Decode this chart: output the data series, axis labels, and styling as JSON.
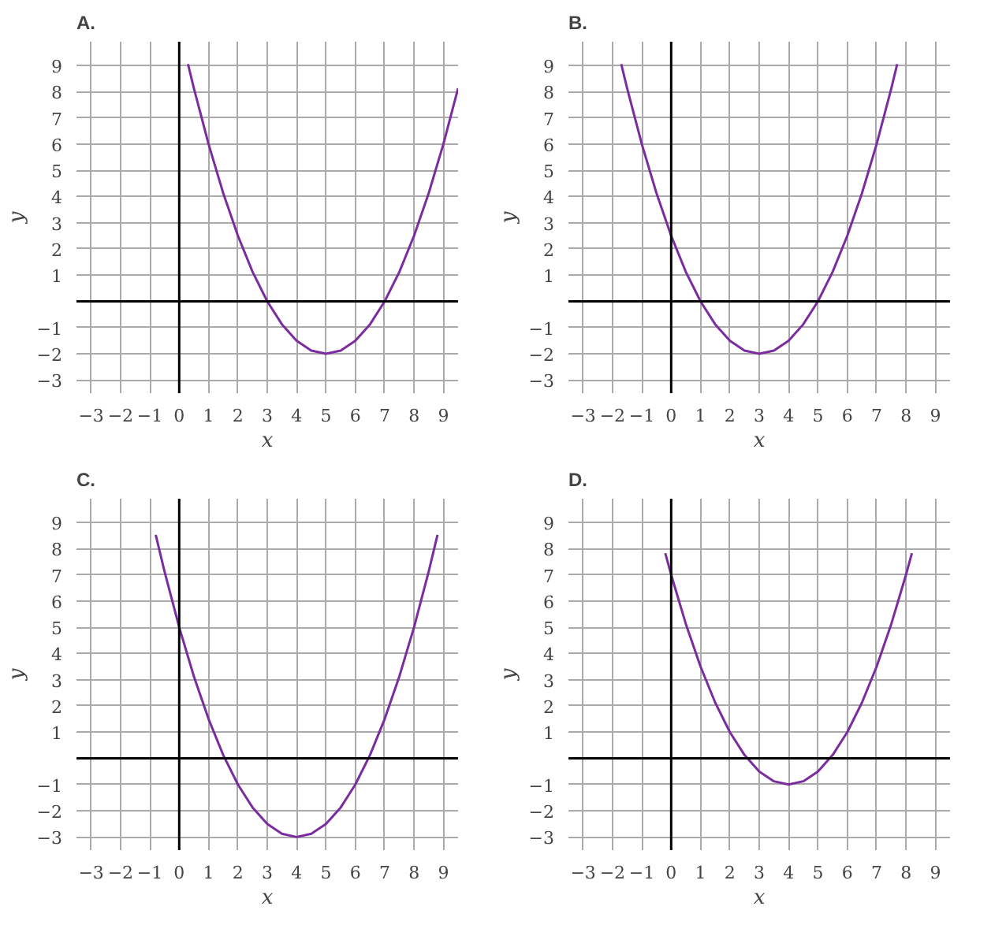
{
  "chart_data": [
    {
      "type": "line",
      "title": "A.",
      "xlabel": "x",
      "ylabel": "y",
      "grid": true,
      "xlim": [
        -3.5,
        9.5
      ],
      "ylim": [
        -3.5,
        9.9
      ],
      "xticks": [
        -3,
        -2,
        -1,
        0,
        1,
        2,
        3,
        4,
        5,
        6,
        7,
        8,
        9
      ],
      "yticks": [
        -3,
        -2,
        -1,
        1,
        2,
        3,
        4,
        5,
        6,
        7,
        8,
        9
      ],
      "series": [
        {
          "color": "#7b2c9e",
          "x": [
            0.3,
            0.5,
            1,
            1.5,
            2,
            2.5,
            3,
            3.5,
            4,
            4.5,
            5,
            5.5,
            6,
            6.5,
            7,
            7.5,
            8,
            8.5,
            9,
            9.5
          ],
          "values": [
            9.045,
            8.125,
            6,
            4.125,
            2.5,
            1.125,
            0,
            -0.875,
            -1.5,
            -1.875,
            -2,
            -1.875,
            -1.5,
            -0.875,
            0,
            1.125,
            2.5,
            4.125,
            6,
            8.125
          ]
        }
      ]
    },
    {
      "type": "line",
      "title": "B.",
      "xlabel": "x",
      "ylabel": "y",
      "grid": true,
      "xlim": [
        -3.5,
        9.5
      ],
      "ylim": [
        -3.5,
        9.9
      ],
      "xticks": [
        -3,
        -2,
        -1,
        0,
        1,
        2,
        3,
        4,
        5,
        6,
        7,
        8,
        9
      ],
      "yticks": [
        -3,
        -2,
        -1,
        1,
        2,
        3,
        4,
        5,
        6,
        7,
        8,
        9
      ],
      "series": [
        {
          "color": "#7b2c9e",
          "x": [
            -1.7,
            -1.5,
            -1,
            -0.5,
            0,
            0.5,
            1,
            1.5,
            2,
            2.5,
            3,
            3.5,
            4,
            4.5,
            5,
            5.5,
            6,
            6.5,
            7,
            7.5,
            7.7
          ],
          "values": [
            9.045,
            8.125,
            6,
            4.125,
            2.5,
            1.125,
            0,
            -0.875,
            -1.5,
            -1.875,
            -2,
            -1.875,
            -1.5,
            -0.875,
            0,
            1.125,
            2.5,
            4.125,
            6,
            8.125,
            9.045
          ]
        }
      ]
    },
    {
      "type": "line",
      "title": "C.",
      "xlabel": "x",
      "ylabel": "y",
      "grid": true,
      "xlim": [
        -3.5,
        9.5
      ],
      "ylim": [
        -3.5,
        9.9
      ],
      "xticks": [
        -3,
        -2,
        -1,
        0,
        1,
        2,
        3,
        4,
        5,
        6,
        7,
        8,
        9
      ],
      "yticks": [
        -3,
        -2,
        -1,
        1,
        2,
        3,
        4,
        5,
        6,
        7,
        8,
        9
      ],
      "series": [
        {
          "color": "#7b2c9e",
          "x": [
            -0.8,
            -0.5,
            0,
            0.5,
            1,
            1.5,
            2,
            2.5,
            3,
            3.5,
            4,
            4.5,
            5,
            5.5,
            6,
            6.5,
            7,
            7.5,
            8,
            8.5,
            8.8
          ],
          "values": [
            8.52,
            7.125,
            5,
            3.125,
            1.5,
            0.125,
            -1,
            -1.875,
            -2.5,
            -2.875,
            -3,
            -2.875,
            -2.5,
            -1.875,
            -1,
            0.125,
            1.5,
            3.125,
            5,
            7.125,
            8.52
          ]
        }
      ]
    },
    {
      "type": "line",
      "title": "D.",
      "xlabel": "x",
      "ylabel": "y",
      "grid": true,
      "xlim": [
        -3.5,
        9.5
      ],
      "ylim": [
        -3.5,
        9.9
      ],
      "xticks": [
        -3,
        -2,
        -1,
        0,
        1,
        2,
        3,
        4,
        5,
        6,
        7,
        8,
        9
      ],
      "yticks": [
        -3,
        -2,
        -1,
        1,
        2,
        3,
        4,
        5,
        6,
        7,
        8,
        9
      ],
      "series": [
        {
          "color": "#7b2c9e",
          "x": [
            -0.2,
            0,
            0.5,
            1,
            1.5,
            2,
            2.5,
            3,
            3.5,
            4,
            4.5,
            5,
            5.5,
            6,
            6.5,
            7,
            7.5,
            8,
            8.2
          ],
          "values": [
            7.82,
            7,
            5.125,
            3.5,
            2.125,
            1,
            0.125,
            -0.5,
            -0.875,
            -1,
            -0.875,
            -0.5,
            0.125,
            1,
            2.125,
            3.5,
            5.125,
            7,
            7.82
          ]
        }
      ]
    }
  ]
}
